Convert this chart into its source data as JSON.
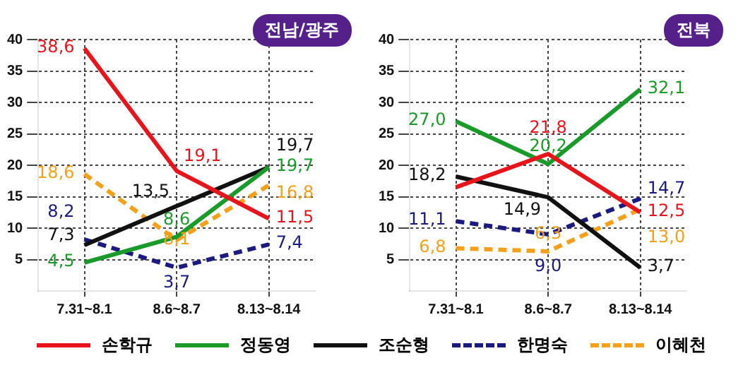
{
  "chart_data": [
    {
      "type": "line",
      "title": "전남/광주",
      "categories": [
        "7.31~8.1",
        "8.6~8.7",
        "8.13~8.14"
      ],
      "ylim": [
        0,
        40
      ],
      "yticks": [
        5,
        10,
        15,
        20,
        25,
        30,
        35,
        40
      ],
      "grid": true,
      "legend": "bottom",
      "series": [
        {
          "name": "손학규",
          "color": "#e8141c",
          "values": [
            38.6,
            19.1,
            11.5
          ],
          "value_labels": [
            "38,6",
            "19,1",
            "11,5"
          ]
        },
        {
          "name": "정동영",
          "color": "#1a9a2a",
          "values": [
            4.5,
            8.6,
            19.7
          ],
          "value_labels": [
            "4,5",
            "8,6",
            "19,7"
          ]
        },
        {
          "name": "조순형",
          "color": "#111111",
          "values": [
            7.3,
            13.5,
            19.7
          ],
          "value_labels": [
            "7,3",
            "13,5",
            "19,7"
          ]
        },
        {
          "name": "한명숙",
          "color": "#1a1a80",
          "line_style": "dashed",
          "values": [
            8.2,
            3.7,
            7.4
          ],
          "value_labels": [
            "8,2",
            "3,7",
            "7,4"
          ]
        },
        {
          "name": "이혜천",
          "color": "#f5a01a",
          "line_style": "dashed",
          "values": [
            18.6,
            8.1,
            16.8
          ],
          "value_labels": [
            "18,6",
            "8,1",
            "16,8"
          ]
        }
      ]
    },
    {
      "type": "line",
      "title": "전북",
      "categories": [
        "7.31~8.1",
        "8.6~8.7",
        "8.13~8.14"
      ],
      "ylim": [
        0,
        40
      ],
      "yticks": [
        5,
        10,
        15,
        20,
        25,
        30,
        35,
        40
      ],
      "grid": true,
      "series": [
        {
          "color": "#e8141c",
          "values": [
            16.5,
            21.8,
            12.5
          ],
          "value_labels": [
            null,
            "21,8",
            "12,5"
          ]
        },
        {
          "color": "#1a9a2a",
          "values": [
            27.0,
            20.2,
            32.1
          ],
          "value_labels": [
            "27,0",
            "20,2",
            "32,1"
          ]
        },
        {
          "color": "#111111",
          "values": [
            18.2,
            14.9,
            3.7
          ],
          "value_labels": [
            "18,2",
            "14,9",
            "3,7"
          ]
        },
        {
          "color": "#1a1a80",
          "line_style": "dashed",
          "values": [
            11.1,
            9.0,
            14.7
          ],
          "value_labels": [
            "11,1",
            "9,0",
            "14,7"
          ]
        },
        {
          "color": "#f5a01a",
          "line_style": "dashed",
          "values": [
            6.8,
            6.3,
            13.0
          ],
          "value_labels": [
            "6,8",
            "6,3",
            "13,0"
          ]
        }
      ]
    }
  ]
}
